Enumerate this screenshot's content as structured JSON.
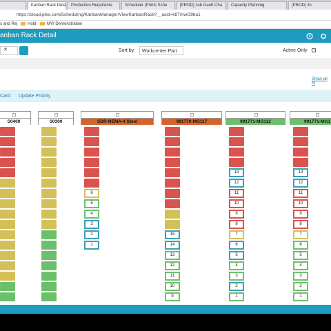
{
  "tabs": [
    "ory",
    "Kanban Rack Detail",
    "Production Requireme",
    "Scheduler (Prints Sche",
    "[PROD] Job Gantt Cha",
    "Capacity Planning",
    "[PROD] Jo"
  ],
  "address": "https://cloud.plex.com/Scheduling/KanbanManager/ViewKanbanRack?__asid=k8TmwO9bu1",
  "bookmarks": [
    "s and Rej",
    "Hold",
    "MVI Demonstration"
  ],
  "header": {
    "title": "anban Rack Detail"
  },
  "filters": {
    "sort_label": "Sort by",
    "sort_value": "Workcenter Part",
    "active_label": "Active Only"
  },
  "show_all": "Show all M",
  "toolbar": [
    "Card",
    "Update Priority"
  ],
  "columns": [
    {
      "name": "S0400",
      "color": "#ffffff",
      "cards": [
        {
          "color": "#d9534f"
        },
        {
          "color": "#d9534f"
        },
        {
          "color": "#d9534f"
        },
        {
          "color": "#d9534f"
        },
        {
          "color": "#d9534f"
        },
        {
          "color": "#d4c05a"
        },
        {
          "color": "#d4c05a"
        },
        {
          "color": "#d4c05a"
        },
        {
          "color": "#d4c05a"
        },
        {
          "color": "#d4c05a"
        },
        {
          "color": "#d4c05a"
        },
        {
          "color": "#d4c05a"
        },
        {
          "color": "#d4c05a"
        },
        {
          "color": "#d4c05a"
        },
        {
          "color": "#d4c05a"
        },
        {
          "color": "#6cc06c"
        },
        {
          "color": "#6cc06c"
        }
      ]
    },
    {
      "name": "S0300",
      "color": "#ffffff",
      "cards": [
        {
          "color": "#d4c05a"
        },
        {
          "color": "#d4c05a"
        },
        {
          "color": "#d4c05a"
        },
        {
          "color": "#d4c05a"
        },
        {
          "color": "#d4c05a"
        },
        {
          "color": "#d4c05a"
        },
        {
          "color": "#d4c05a"
        },
        {
          "color": "#d4c05a"
        },
        {
          "color": "#d4c05a"
        },
        {
          "color": "#d4c05a"
        },
        {
          "color": "#6cc06c"
        },
        {
          "color": "#6cc06c"
        },
        {
          "color": "#6cc06c"
        },
        {
          "color": "#6cc06c"
        },
        {
          "color": "#6cc06c"
        },
        {
          "color": "#6cc06c"
        },
        {
          "color": "#6cc06c"
        }
      ]
    },
    {
      "name": "SDR-NEMA-4 Steel",
      "color": "#d9622b",
      "cards": [
        {
          "color": "#d9534f"
        },
        {
          "color": "#d9534f"
        },
        {
          "color": "#d9534f"
        },
        {
          "color": "#d9534f"
        },
        {
          "color": "#d9534f"
        },
        {
          "color": "#d9534f"
        },
        {
          "color": "#d4c05a",
          "label": "6"
        },
        {
          "color": "#6cc06c",
          "label": "5"
        },
        {
          "color": "#6cc06c",
          "label": "4"
        },
        {
          "color": "#3a9fb5",
          "label": "3"
        },
        {
          "color": "#3a9fb5",
          "label": "2"
        },
        {
          "color": "#3a9fb5",
          "label": "1"
        }
      ]
    },
    {
      "name": "991770-MG117",
      "color": "#d9622b",
      "cards": [
        {
          "color": "#d9534f"
        },
        {
          "color": "#d9534f"
        },
        {
          "color": "#d9534f"
        },
        {
          "color": "#d9534f"
        },
        {
          "color": "#d9534f"
        },
        {
          "color": "#d9534f"
        },
        {
          "color": "#d9534f"
        },
        {
          "color": "#d9534f"
        },
        {
          "color": "#d4c05a"
        },
        {
          "color": "#d4c05a"
        },
        {
          "color": "#3a9fb5",
          "label": "15"
        },
        {
          "color": "#3a9fb5",
          "label": "14"
        },
        {
          "color": "#6cc06c",
          "label": "13"
        },
        {
          "color": "#6cc06c",
          "label": "12"
        },
        {
          "color": "#6cc06c",
          "label": "11"
        },
        {
          "color": "#6cc06c",
          "label": "10"
        },
        {
          "color": "#6cc06c",
          "label": "9"
        }
      ]
    },
    {
      "name": "991771-MG112",
      "color": "#6cc06c",
      "cards": [
        {
          "color": "#d9534f"
        },
        {
          "color": "#d9534f"
        },
        {
          "color": "#d9534f"
        },
        {
          "color": "#d9534f"
        },
        {
          "color": "#3a9fb5",
          "label": "13"
        },
        {
          "color": "#3a9fb5",
          "label": "12"
        },
        {
          "color": "#d9534f",
          "label": "11"
        },
        {
          "color": "#d9534f",
          "label": "10"
        },
        {
          "color": "#d9534f",
          "label": "9"
        },
        {
          "color": "#d9534f",
          "label": "8"
        },
        {
          "color": "#d4c05a",
          "label": "7"
        },
        {
          "color": "#3a9fb5",
          "label": "6"
        },
        {
          "color": "#3a9fb5",
          "label": "5"
        },
        {
          "color": "#6cc06c",
          "label": "4"
        },
        {
          "color": "#6cc06c",
          "label": "3"
        },
        {
          "color": "#3a9fb5",
          "label": "2"
        },
        {
          "color": "#6cc06c",
          "label": "1"
        }
      ]
    },
    {
      "name": "991771-MG1",
      "color": "#6cc06c",
      "cards": [
        {
          "color": "#d9534f"
        },
        {
          "color": "#d9534f"
        },
        {
          "color": "#d9534f"
        },
        {
          "color": "#d9534f"
        },
        {
          "color": "#3a9fb5",
          "label": "13"
        },
        {
          "color": "#3a9fb5",
          "label": "12"
        },
        {
          "color": "#d9534f",
          "label": "11"
        },
        {
          "color": "#d9534f",
          "label": "10"
        },
        {
          "color": "#d9534f",
          "label": "9"
        },
        {
          "color": "#d9534f",
          "label": "8"
        },
        {
          "color": "#d4c05a",
          "label": "7"
        },
        {
          "color": "#6cc06c",
          "label": "6"
        },
        {
          "color": "#6cc06c",
          "label": "5"
        },
        {
          "color": "#6cc06c",
          "label": "4"
        },
        {
          "color": "#6cc06c",
          "label": "3"
        },
        {
          "color": "#6cc06c",
          "label": "2"
        },
        {
          "color": "#6cc06c",
          "label": "1"
        }
      ]
    }
  ]
}
